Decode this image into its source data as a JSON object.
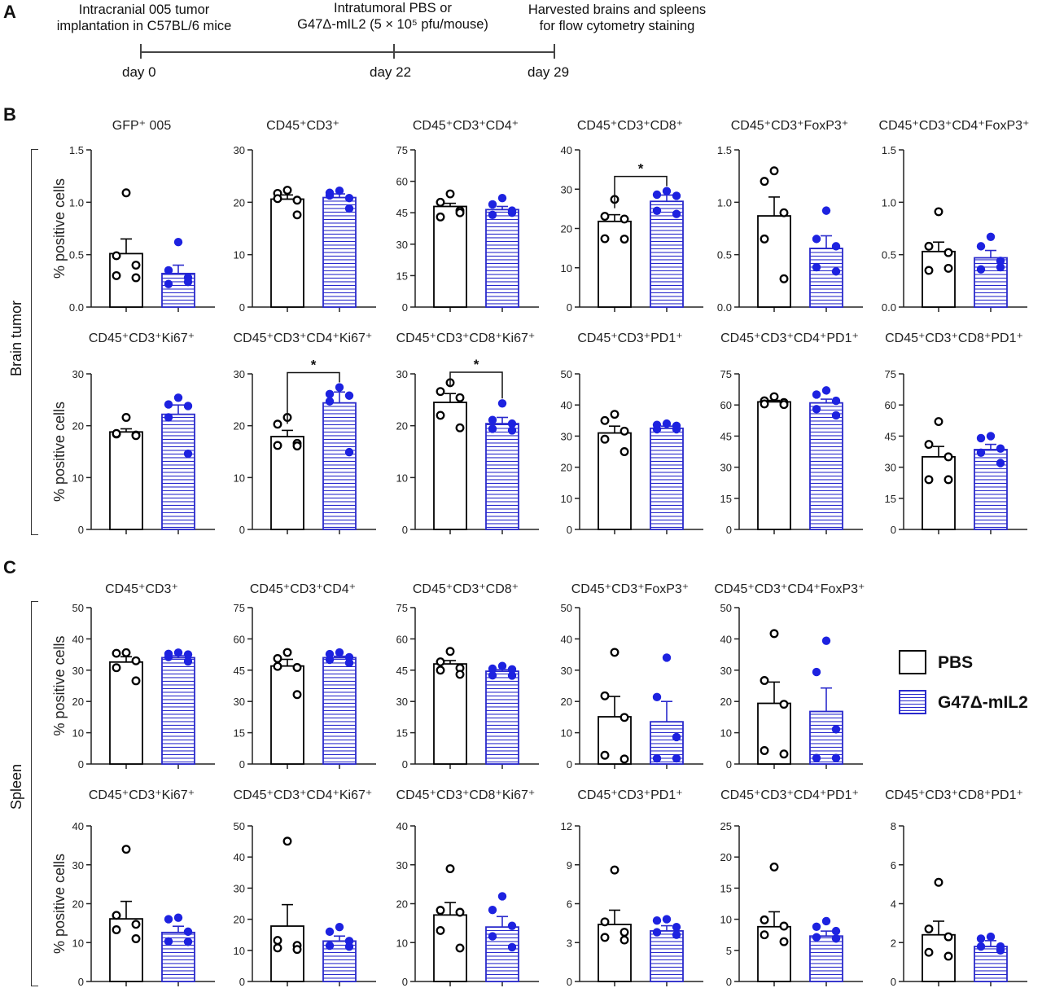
{
  "panel_labels": {
    "a": "A",
    "b": "B",
    "c": "C"
  },
  "timeline": {
    "events": [
      {
        "label": "Intracranial  005 tumor\nimplantation in C57BL/6 mice",
        "day": "day 0"
      },
      {
        "label": "Intratumoral  PBS or\nG47Δ-mIL2 (5 × 10⁵ pfu/mouse)",
        "day": "day 22"
      },
      {
        "label": "Harvested brains and spleens\nfor flow cytometry  staining",
        "day": "day 29"
      }
    ]
  },
  "group_labels": {
    "brain": "Brain tumor",
    "spleen": "Spleen"
  },
  "ylabel": "% positive cells",
  "legend": {
    "items": [
      {
        "label": "PBS",
        "color": "#000000",
        "fill": "open"
      },
      {
        "label": "G47Δ-mIL2",
        "color": "#2a2acc",
        "fill": "striped"
      }
    ]
  },
  "colors": {
    "pbs": "#000000",
    "g47": "#2a2acc",
    "g47_dot": "#1d22e0"
  },
  "chart_data": [
    {
      "type": "bar",
      "panel": "B",
      "title": "GFP⁺ 005",
      "categories": [
        "PBS",
        "G47Δ-mIL2"
      ],
      "ylim": [
        0,
        1.5
      ],
      "yticks": [
        "0.0",
        "0.5",
        "1.0",
        "1.5"
      ],
      "series": [
        {
          "name": "PBS",
          "mean": 0.51,
          "sem": 0.14,
          "points": [
            1.09,
            0.49,
            0.4,
            0.3,
            0.28
          ]
        },
        {
          "name": "G47Δ-mIL2",
          "mean": 0.32,
          "sem": 0.08,
          "points": [
            0.62,
            0.35,
            0.28,
            0.22,
            0.24
          ]
        }
      ]
    },
    {
      "type": "bar",
      "panel": "B",
      "title": "CD45⁺CD3⁺",
      "categories": [
        "PBS",
        "G47Δ-mIL2"
      ],
      "ylim": [
        0,
        30
      ],
      "yticks": [
        "0",
        "10",
        "20",
        "30"
      ],
      "series": [
        {
          "name": "PBS",
          "mean": 20.6,
          "sem": 0.8,
          "points": [
            22.3,
            21.7,
            20.4,
            20.7,
            17.6
          ]
        },
        {
          "name": "G47Δ-mIL2",
          "mean": 20.9,
          "sem": 0.7,
          "points": [
            22.2,
            21.8,
            20.8,
            21.3,
            18.8
          ]
        }
      ]
    },
    {
      "type": "bar",
      "panel": "B",
      "title": "CD45⁺CD3⁺CD4⁺",
      "categories": [
        "PBS",
        "G47Δ-mIL2"
      ],
      "ylim": [
        0,
        75
      ],
      "yticks": [
        "0",
        "15",
        "30",
        "45",
        "60",
        "75"
      ],
      "series": [
        {
          "name": "PBS",
          "mean": 48,
          "sem": 1.5,
          "points": [
            54,
            50,
            46,
            43,
            45
          ]
        },
        {
          "name": "G47Δ-mIL2",
          "mean": 46.5,
          "sem": 1.5,
          "points": [
            52,
            49,
            46,
            44,
            45
          ]
        }
      ]
    },
    {
      "type": "bar",
      "panel": "B",
      "title": "CD45⁺CD3⁺CD8⁺",
      "categories": [
        "PBS",
        "G47Δ-mIL2"
      ],
      "ylim": [
        0,
        40
      ],
      "yticks": [
        "0",
        "10",
        "20",
        "30",
        "40"
      ],
      "series": [
        {
          "name": "PBS",
          "mean": 21.8,
          "sem": 1.7,
          "points": [
            27.4,
            23.1,
            22.4,
            17.4,
            17.3
          ]
        },
        {
          "name": "G47Δ-mIL2",
          "mean": 26.9,
          "sem": 1.6,
          "points": [
            29.5,
            28.6,
            28.3,
            24.5,
            23.7
          ]
        }
      ],
      "significance": "*"
    },
    {
      "type": "bar",
      "panel": "B",
      "title": "CD45⁺CD3⁺FoxP3⁺",
      "categories": [
        "PBS",
        "G47Δ-mIL2"
      ],
      "ylim": [
        0,
        1.5
      ],
      "yticks": [
        "0.0",
        "0.5",
        "1.0",
        "1.5"
      ],
      "series": [
        {
          "name": "PBS",
          "mean": 0.87,
          "sem": 0.18,
          "points": [
            1.3,
            1.2,
            0.9,
            0.65,
            0.27
          ]
        },
        {
          "name": "G47Δ-mIL2",
          "mean": 0.56,
          "sem": 0.12,
          "points": [
            0.92,
            0.65,
            0.58,
            0.38,
            0.34
          ]
        }
      ]
    },
    {
      "type": "bar",
      "panel": "B",
      "title": "CD45⁺CD3⁺CD4⁺FoxP3⁺",
      "categories": [
        "PBS",
        "G47Δ-mIL2"
      ],
      "ylim": [
        0,
        1.5
      ],
      "yticks": [
        "0.0",
        "0.5",
        "1.0",
        "1.5"
      ],
      "series": [
        {
          "name": "PBS",
          "mean": 0.53,
          "sem": 0.09,
          "points": [
            0.91,
            0.58,
            0.52,
            0.35,
            0.37
          ]
        },
        {
          "name": "G47Δ-mIL2",
          "mean": 0.47,
          "sem": 0.07,
          "points": [
            0.67,
            0.58,
            0.44,
            0.36,
            0.38
          ]
        }
      ]
    },
    {
      "type": "bar",
      "panel": "B",
      "title": "CD45⁺CD3⁺Ki67⁺",
      "categories": [
        "PBS",
        "G47Δ-mIL2"
      ],
      "ylim": [
        0,
        30
      ],
      "yticks": [
        "0",
        "10",
        "20",
        "30"
      ],
      "series": [
        {
          "name": "PBS",
          "mean": 18.8,
          "sem": 0.6,
          "points": [
            21.6,
            18.4,
            18.2,
            18.5,
            18.1
          ]
        },
        {
          "name": "G47Δ-mIL2",
          "mean": 22.2,
          "sem": 1.8,
          "points": [
            25.4,
            24.1,
            23.8,
            21.6,
            14.6
          ]
        }
      ]
    },
    {
      "type": "bar",
      "panel": "B",
      "title": "CD45⁺CD3⁺CD4⁺Ki67⁺",
      "categories": [
        "PBS",
        "G47Δ-mIL2"
      ],
      "ylim": [
        0,
        30
      ],
      "yticks": [
        "0",
        "10",
        "20",
        "30"
      ],
      "series": [
        {
          "name": "PBS",
          "mean": 17.9,
          "sem": 1.2,
          "points": [
            21.6,
            20.3,
            16.6,
            16.2,
            16.1
          ]
        },
        {
          "name": "G47Δ-mIL2",
          "mean": 24.4,
          "sem": 2.1,
          "points": [
            27.4,
            26.1,
            25.8,
            24.7,
            14.9
          ]
        }
      ],
      "significance": "*"
    },
    {
      "type": "bar",
      "panel": "B",
      "title": "CD45⁺CD3⁺CD8⁺Ki67⁺",
      "categories": [
        "PBS",
        "G47Δ-mIL2"
      ],
      "ylim": [
        0,
        30
      ],
      "yticks": [
        "0",
        "10",
        "20",
        "30"
      ],
      "series": [
        {
          "name": "PBS",
          "mean": 24.5,
          "sem": 1.7,
          "points": [
            28.3,
            26.6,
            25.4,
            22.0,
            19.6
          ]
        },
        {
          "name": "G47Δ-mIL2",
          "mean": 20.4,
          "sem": 1.2,
          "points": [
            24.3,
            21.1,
            20.4,
            19.4,
            19.1
          ]
        }
      ],
      "significance": "*"
    },
    {
      "type": "bar",
      "panel": "B",
      "title": "CD45⁺CD3⁺PD1⁺",
      "categories": [
        "PBS",
        "G47Δ-mIL2"
      ],
      "ylim": [
        0,
        50
      ],
      "yticks": [
        "0",
        "10",
        "20",
        "30",
        "40",
        "50"
      ],
      "series": [
        {
          "name": "PBS",
          "mean": 31,
          "sem": 2.2,
          "points": [
            37,
            35,
            31.6,
            29,
            25
          ]
        },
        {
          "name": "G47Δ-mIL2",
          "mean": 32.5,
          "sem": 0.7,
          "points": [
            34,
            33.6,
            33.3,
            32.2,
            32.2
          ]
        }
      ]
    },
    {
      "type": "bar",
      "panel": "B",
      "title": "CD45⁺CD3⁺CD4⁺PD1⁺",
      "categories": [
        "PBS",
        "G47Δ-mIL2"
      ],
      "ylim": [
        0,
        75
      ],
      "yticks": [
        "0",
        "15",
        "30",
        "45",
        "60",
        "75"
      ],
      "series": [
        {
          "name": "PBS",
          "mean": 61.5,
          "sem": 0.7,
          "points": [
            64,
            62,
            61.2,
            60.5,
            60.2
          ]
        },
        {
          "name": "G47Δ-mIL2",
          "mean": 61,
          "sem": 1.8,
          "points": [
            67,
            65,
            62,
            58,
            55
          ]
        }
      ]
    },
    {
      "type": "bar",
      "panel": "B",
      "title": "CD45⁺CD3⁺CD8⁺PD1⁺",
      "categories": [
        "PBS",
        "G47Δ-mIL2"
      ],
      "ylim": [
        0,
        75
      ],
      "yticks": [
        "0",
        "15",
        "30",
        "45",
        "60",
        "75"
      ],
      "series": [
        {
          "name": "PBS",
          "mean": 35,
          "sem": 5,
          "points": [
            52,
            41,
            35,
            24,
            24
          ]
        },
        {
          "name": "G47Δ-mIL2",
          "mean": 38.5,
          "sem": 2.5,
          "points": [
            45,
            44,
            39,
            37,
            32
          ]
        }
      ]
    },
    {
      "type": "bar",
      "panel": "C",
      "title": "CD45⁺CD3⁺",
      "categories": [
        "PBS",
        "G47Δ-mIL2"
      ],
      "ylim": [
        0,
        50
      ],
      "yticks": [
        "0",
        "10",
        "20",
        "30",
        "40",
        "50"
      ],
      "series": [
        {
          "name": "PBS",
          "mean": 32.6,
          "sem": 1.7,
          "points": [
            35.6,
            35.4,
            33,
            30.8,
            26.6
          ]
        },
        {
          "name": "G47Δ-mIL2",
          "mean": 34,
          "sem": 0.6,
          "points": [
            35.6,
            35.2,
            35,
            34.2,
            32.8
          ]
        }
      ]
    },
    {
      "type": "bar",
      "panel": "C",
      "title": "CD45⁺CD3⁺CD4⁺",
      "categories": [
        "PBS",
        "G47Δ-mIL2"
      ],
      "ylim": [
        0,
        75
      ],
      "yticks": [
        "0",
        "15",
        "30",
        "45",
        "60",
        "75"
      ],
      "series": [
        {
          "name": "PBS",
          "mean": 47,
          "sem": 3.2,
          "points": [
            53.5,
            50.6,
            46.3,
            46.8,
            33.3
          ]
        },
        {
          "name": "G47Δ-mIL2",
          "mean": 51,
          "sem": 0.7,
          "points": [
            53.5,
            52.7,
            51.2,
            50,
            48.5
          ]
        }
      ]
    },
    {
      "type": "bar",
      "panel": "C",
      "title": "CD45⁺CD3⁺CD8⁺",
      "categories": [
        "PBS",
        "G47Δ-mIL2"
      ],
      "ylim": [
        0,
        75
      ],
      "yticks": [
        "0",
        "15",
        "30",
        "45",
        "60",
        "75"
      ],
      "series": [
        {
          "name": "PBS",
          "mean": 48,
          "sem": 1.6,
          "points": [
            54,
            49,
            46,
            45,
            43
          ]
        },
        {
          "name": "G47Δ-mIL2",
          "mean": 44.5,
          "sem": 0.8,
          "points": [
            47,
            45.7,
            45.4,
            42.5,
            42.4
          ]
        }
      ]
    },
    {
      "type": "bar",
      "panel": "C",
      "title": "CD45⁺CD3⁺FoxP3⁺",
      "categories": [
        "PBS",
        "G47Δ-mIL2"
      ],
      "ylim": [
        0,
        50
      ],
      "yticks": [
        "0",
        "10",
        "20",
        "30",
        "40",
        "50"
      ],
      "series": [
        {
          "name": "PBS",
          "mean": 15.1,
          "sem": 6.5,
          "points": [
            35.7,
            21.8,
            14.9,
            2.8,
            1.6
          ]
        },
        {
          "name": "G47Δ-mIL2",
          "mean": 13.5,
          "sem": 6.5,
          "points": [
            34,
            21.4,
            8.6,
            1.8,
            1.8
          ]
        }
      ]
    },
    {
      "type": "bar",
      "panel": "C",
      "title": "CD45⁺CD3⁺CD4⁺FoxP3⁺",
      "categories": [
        "PBS",
        "G47Δ-mIL2"
      ],
      "ylim": [
        0,
        50
      ],
      "yticks": [
        "0",
        "10",
        "20",
        "30",
        "40",
        "50"
      ],
      "series": [
        {
          "name": "PBS",
          "mean": 19.4,
          "sem": 6.8,
          "points": [
            41.7,
            26.7,
            19.1,
            4.3,
            3.2
          ]
        },
        {
          "name": "G47Δ-mIL2",
          "mean": 16.8,
          "sem": 7.5,
          "points": [
            39.4,
            29.4,
            11.1,
            1.9,
            1.9
          ]
        }
      ]
    },
    {
      "type": "bar",
      "panel": "C",
      "title": "CD45⁺CD3⁺Ki67⁺",
      "categories": [
        "PBS",
        "G47Δ-mIL2"
      ],
      "ylim": [
        0,
        40
      ],
      "yticks": [
        "0",
        "10",
        "20",
        "30",
        "40"
      ],
      "series": [
        {
          "name": "PBS",
          "mean": 16.1,
          "sem": 4.5,
          "points": [
            34,
            17,
            14.7,
            13.3,
            11
          ]
        },
        {
          "name": "G47Δ-mIL2",
          "mean": 12.6,
          "sem": 1.6,
          "points": [
            16.4,
            16,
            12.8,
            10.3,
            10.2
          ]
        }
      ]
    },
    {
      "type": "bar",
      "panel": "C",
      "title": "CD45⁺CD3⁺CD4⁺Ki67⁺",
      "categories": [
        "PBS",
        "G47Δ-mIL2"
      ],
      "ylim": [
        0,
        50
      ],
      "yticks": [
        "0",
        "10",
        "20",
        "30",
        "40",
        "50"
      ],
      "series": [
        {
          "name": "PBS",
          "mean": 17.8,
          "sem": 6.9,
          "points": [
            45.1,
            13.2,
            11.6,
            10.8,
            10.3
          ]
        },
        {
          "name": "G47Δ-mIL2",
          "mean": 13,
          "sem": 1.6,
          "points": [
            17.5,
            16,
            13,
            11.5,
            11.2
          ]
        }
      ]
    },
    {
      "type": "bar",
      "panel": "C",
      "title": "CD45⁺CD3⁺CD8⁺Ki67⁺",
      "categories": [
        "PBS",
        "G47Δ-mIL2"
      ],
      "ylim": [
        0,
        40
      ],
      "yticks": [
        "0",
        "10",
        "20",
        "30",
        "40"
      ],
      "series": [
        {
          "name": "PBS",
          "mean": 17.1,
          "sem": 3.2,
          "points": [
            29,
            18.3,
            17.8,
            13.1,
            8.6
          ]
        },
        {
          "name": "G47Δ-mIL2",
          "mean": 14,
          "sem": 2.7,
          "points": [
            21.9,
            18.4,
            14.3,
            11.6,
            8.8
          ]
        }
      ]
    },
    {
      "type": "bar",
      "panel": "C",
      "title": "CD45⁺CD3⁺PD1⁺",
      "categories": [
        "PBS",
        "G47Δ-mIL2"
      ],
      "ylim": [
        0,
        12
      ],
      "yticks": [
        "0",
        "3",
        "6",
        "9",
        "12"
      ],
      "series": [
        {
          "name": "PBS",
          "mean": 4.4,
          "sem": 1.1,
          "points": [
            8.6,
            4.6,
            3.8,
            3.4,
            3.2
          ]
        },
        {
          "name": "G47Δ-mIL2",
          "mean": 3.9,
          "sem": 0.4,
          "points": [
            4.8,
            4.7,
            4.2,
            3.8,
            3.6
          ]
        }
      ]
    },
    {
      "type": "bar",
      "panel": "C",
      "title": "CD45⁺CD3⁺CD4⁺PD1⁺",
      "categories": [
        "PBS",
        "G47Δ-mIL2"
      ],
      "ylim": [
        0,
        25
      ],
      "yticks": [
        "0",
        "5",
        "10",
        "15",
        "20",
        "25"
      ],
      "series": [
        {
          "name": "PBS",
          "mean": 8.8,
          "sem": 2.4,
          "points": [
            18.4,
            9.9,
            8.9,
            7.5,
            6.4
          ]
        },
        {
          "name": "G47Δ-mIL2",
          "mean": 7.3,
          "sem": 0.8,
          "points": [
            9.7,
            8.8,
            8.1,
            7.1,
            6.9
          ]
        }
      ]
    },
    {
      "type": "bar",
      "panel": "C",
      "title": "CD45⁺CD3⁺CD8⁺PD1⁺",
      "categories": [
        "PBS",
        "G47Δ-mIL2"
      ],
      "ylim": [
        0,
        8
      ],
      "yticks": [
        "0",
        "2",
        "4",
        "6",
        "8"
      ],
      "series": [
        {
          "name": "PBS",
          "mean": 2.4,
          "sem": 0.7,
          "points": [
            5.1,
            2.7,
            2.3,
            1.5,
            1.3
          ]
        },
        {
          "name": "G47Δ-mIL2",
          "mean": 1.8,
          "sem": 0.3,
          "points": [
            2.3,
            2.2,
            1.8,
            1.8,
            1.6
          ]
        }
      ]
    }
  ]
}
